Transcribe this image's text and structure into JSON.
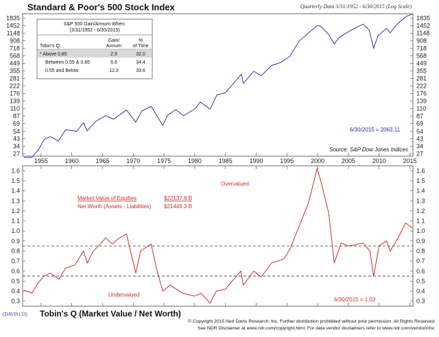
{
  "top_chart": {
    "title": "Standard & Poor's 500 Stock Index",
    "subtitle": "Quarterly Data 3/31/1952 - 6/30/2015 (Log Scale)",
    "y_ticks": [
      "1835",
      "1452",
      "1148",
      "908",
      "718",
      "568",
      "449",
      "355",
      "281",
      "222",
      "176",
      "139",
      "110",
      "87",
      "69",
      "54",
      "43",
      "34",
      "27"
    ],
    "last_value_label": "6/30/2015 = 2063.11",
    "source": "Source: S&P Dow Jones Indices",
    "line_color": "#3333aa",
    "table": {
      "header": "S&P 500 Gain/Annum When:",
      "header_range": "(3/31/1952 - 6/30/2015)",
      "col1": "Tobin's Q:",
      "col2a": "Gain/",
      "col2b": "Annum",
      "col3a": "%",
      "col3b": "of Time",
      "rows": [
        {
          "label": "* Above 0.85",
          "gain": "2.9",
          "time": "32.0"
        },
        {
          "label": "Between 0.55 & 0.85",
          "gain": "6.6",
          "time": "34.4"
        },
        {
          "label": "0.55 and Below",
          "gain": "12.3",
          "time": "33.6"
        }
      ]
    }
  },
  "bottom_chart": {
    "overvalued": "Overvalued",
    "undervalued": "Undervalued",
    "mv_label": "Market Value of Equities",
    "mv_value": "$22137.8 B",
    "nw_label": "Net Worth (Assets - Liabilities)",
    "nw_value": "$21449.3 B",
    "last_value_label": "6/30/2015 = 1.03",
    "y_ticks": [
      "1.6",
      "1.5",
      "1.4",
      "1.3",
      "1.2",
      "1.1",
      "1.0",
      "0.9",
      "0.8",
      "0.7",
      "0.6",
      "0.5",
      "0.4",
      "0.3"
    ],
    "line_color": "#cc2b2b"
  },
  "x_ticks": [
    "1955",
    "1960",
    "1965",
    "1970",
    "1975",
    "1980",
    "1985",
    "1990",
    "1995",
    "2000",
    "2005",
    "2010",
    "2015"
  ],
  "footer": {
    "code": "(DAVIS133)",
    "title": "Tobin's Q (Market Value / Net Worth)",
    "copyright": "© Copyright 2015 Ned Davis Research, Inc.  Further distribution prohibited without prior permission.  All Rights Reserved.",
    "disclaimer": "See NDR Disclaimer at www.ndr.com/copyright.html.  For data vendor disclaimers refer to www.ndr.com/vendorinfo/."
  },
  "chart_data": [
    {
      "type": "line",
      "title": "Standard & Poor's 500 Stock Index",
      "scale": "log",
      "ylim": [
        25,
        2100
      ],
      "xlim": [
        1952,
        2015.5
      ],
      "series": [
        {
          "values": [
            [
              1952.2,
              24
            ],
            [
              1953.5,
              24
            ],
            [
              1954.5,
              30
            ],
            [
              1955.5,
              42
            ],
            [
              1956.5,
              46
            ],
            [
              1957.8,
              40
            ],
            [
              1959,
              57
            ],
            [
              1960.8,
              54
            ],
            [
              1961.9,
              71
            ],
            [
              1962.5,
              55
            ],
            [
              1963.9,
              74
            ],
            [
              1965.5,
              88
            ],
            [
              1966.8,
              79
            ],
            [
              1968.9,
              105
            ],
            [
              1970.4,
              72
            ],
            [
              1971.4,
              102
            ],
            [
              1972.9,
              118
            ],
            [
              1974.8,
              65
            ],
            [
              1975.6,
              90
            ],
            [
              1976.9,
              106
            ],
            [
              1978.2,
              88
            ],
            [
              1980.1,
              110
            ],
            [
              1980.9,
              135
            ],
            [
              1982.5,
              108
            ],
            [
              1983.6,
              168
            ],
            [
              1985,
              180
            ],
            [
              1987.6,
              320
            ],
            [
              1987.9,
              240
            ],
            [
              1989.6,
              350
            ],
            [
              1990.8,
              305
            ],
            [
              1992.5,
              420
            ],
            [
              1994,
              460
            ],
            [
              1995.5,
              560
            ],
            [
              1997,
              900
            ],
            [
              1998.5,
              1150
            ],
            [
              1999.9,
              1450
            ],
            [
              2000.5,
              1420
            ],
            [
              2001.8,
              1100
            ],
            [
              2002.7,
              820
            ],
            [
              2003.5,
              1000
            ],
            [
              2005,
              1200
            ],
            [
              2007.4,
              1520
            ],
            [
              2008.4,
              1250
            ],
            [
              2009.1,
              720
            ],
            [
              2009.8,
              1050
            ],
            [
              2011.2,
              1330
            ],
            [
              2011.8,
              1160
            ],
            [
              2012.5,
              1380
            ],
            [
              2013.5,
              1680
            ],
            [
              2014.5,
              1950
            ],
            [
              2015.4,
              2063.11
            ]
          ]
        }
      ]
    },
    {
      "type": "line",
      "title": "Tobin's Q (Market Value / Net Worth)",
      "ylim": [
        0.25,
        1.65
      ],
      "xlim": [
        1952,
        2015.5
      ],
      "reference_lines": [
        0.85,
        0.55
      ],
      "series": [
        {
          "values": [
            [
              1952.2,
              0.41
            ],
            [
              1953.5,
              0.38
            ],
            [
              1954.5,
              0.48
            ],
            [
              1955.5,
              0.55
            ],
            [
              1956.5,
              0.58
            ],
            [
              1957.9,
              0.52
            ],
            [
              1959,
              0.63
            ],
            [
              1960.5,
              0.66
            ],
            [
              1961.9,
              0.8
            ],
            [
              1962.5,
              0.68
            ],
            [
              1963.5,
              0.8
            ],
            [
              1964.5,
              0.86
            ],
            [
              1965.5,
              0.93
            ],
            [
              1966.6,
              0.87
            ],
            [
              1967.5,
              0.92
            ],
            [
              1968.9,
              0.97
            ],
            [
              1970.4,
              0.58
            ],
            [
              1971.2,
              0.8
            ],
            [
              1972.9,
              0.87
            ],
            [
              1973.8,
              0.62
            ],
            [
              1974.8,
              0.4
            ],
            [
              1976,
              0.46
            ],
            [
              1978,
              0.38
            ],
            [
              1980,
              0.35
            ],
            [
              1981,
              0.38
            ],
            [
              1982.5,
              0.28
            ],
            [
              1983.5,
              0.4
            ],
            [
              1985,
              0.42
            ],
            [
              1987.5,
              0.6
            ],
            [
              1987.9,
              0.46
            ],
            [
              1989.6,
              0.6
            ],
            [
              1990.8,
              0.54
            ],
            [
              1992.5,
              0.68
            ],
            [
              1994.5,
              0.72
            ],
            [
              1995.5,
              0.82
            ],
            [
              1997,
              1.05
            ],
            [
              1998.5,
              1.28
            ],
            [
              1999.9,
              1.62
            ],
            [
              2000.5,
              1.5
            ],
            [
              2001.8,
              1.18
            ],
            [
              2002.7,
              0.68
            ],
            [
              2003.8,
              0.88
            ],
            [
              2005,
              0.85
            ],
            [
              2007.4,
              0.88
            ],
            [
              2008.5,
              0.8
            ],
            [
              2009.1,
              0.55
            ],
            [
              2010,
              0.85
            ],
            [
              2011.2,
              0.9
            ],
            [
              2011.8,
              0.8
            ],
            [
              2013,
              0.92
            ],
            [
              2014.3,
              1.08
            ],
            [
              2015.4,
              1.03
            ]
          ]
        }
      ]
    }
  ]
}
